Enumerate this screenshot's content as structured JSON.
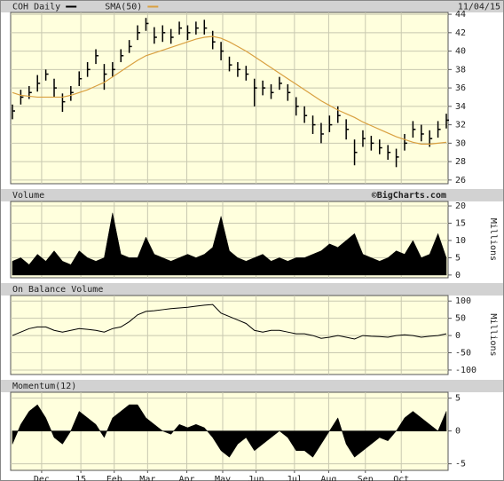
{
  "date": "11/04/15",
  "source": "©BigCharts.com",
  "x_axis": {
    "xlim": [
      0,
      52
    ],
    "xticks": [
      {
        "value": 3.5,
        "label": "Dec"
      },
      {
        "value": 8.2,
        "label": "15"
      },
      {
        "value": 12.2,
        "label": "Feb"
      },
      {
        "value": 16.2,
        "label": "Mar"
      },
      {
        "value": 20.9,
        "label": "Apr"
      },
      {
        "value": 25.2,
        "label": "May"
      },
      {
        "value": 29.2,
        "label": "Jun"
      },
      {
        "value": 33.8,
        "label": "Jul"
      },
      {
        "value": 37.9,
        "label": "Aug"
      },
      {
        "value": 42.3,
        "label": "Sep"
      },
      {
        "value": 46.6,
        "label": "Oct"
      }
    ]
  },
  "chart_data": [
    {
      "type": "ohlc",
      "ylim": [
        25.6,
        44.2
      ],
      "yticks": [
        26,
        28,
        30,
        32,
        34,
        36,
        38,
        40,
        42,
        44
      ],
      "grid": true,
      "series": [
        {
          "name": "COH Daily",
          "color": "#000000",
          "high": [
            34.2,
            35.8,
            36.2,
            37.4,
            38.0,
            37.0,
            35.4,
            36.2,
            37.8,
            38.8,
            40.2,
            38.6,
            38.8,
            40.2,
            41.2,
            42.8,
            43.6,
            42.6,
            42.8,
            42.4,
            43.2,
            42.8,
            43.2,
            43.4,
            42.2,
            41.0,
            39.4,
            38.8,
            38.4,
            37.0,
            36.8,
            36.4,
            37.2,
            36.4,
            35.0,
            34.0,
            33.0,
            32.2,
            33.0,
            34.0,
            32.6,
            30.4,
            31.4,
            30.8,
            30.4,
            29.8,
            29.4,
            31.0,
            32.4,
            32.0,
            31.4,
            32.4,
            33.2
          ],
          "low": [
            32.6,
            34.2,
            34.8,
            35.6,
            36.8,
            35.0,
            33.4,
            34.6,
            36.2,
            37.2,
            38.6,
            35.8,
            37.2,
            38.8,
            39.8,
            41.2,
            42.2,
            40.8,
            41.0,
            40.8,
            41.8,
            41.2,
            41.8,
            41.8,
            40.2,
            39.0,
            37.8,
            37.2,
            36.8,
            34.0,
            35.2,
            34.8,
            35.8,
            34.6,
            33.0,
            32.2,
            31.0,
            30.0,
            31.2,
            32.2,
            30.4,
            27.6,
            29.6,
            29.2,
            28.8,
            28.2,
            27.4,
            29.2,
            30.6,
            30.2,
            29.6,
            30.6,
            31.6
          ],
          "close": [
            33.5,
            35.0,
            35.5,
            36.5,
            37.5,
            36.0,
            34.5,
            35.5,
            37.0,
            38.0,
            39.5,
            37.5,
            38.0,
            39.5,
            40.5,
            42.0,
            43.0,
            41.5,
            42.0,
            41.5,
            42.5,
            42.0,
            42.5,
            42.5,
            41.0,
            40.0,
            38.5,
            38.0,
            37.5,
            36.0,
            36.0,
            35.5,
            36.5,
            35.5,
            34.0,
            33.0,
            32.0,
            31.0,
            32.0,
            33.0,
            31.5,
            29.0,
            30.5,
            30.0,
            29.5,
            29.0,
            28.5,
            30.0,
            31.5,
            31.0,
            30.5,
            31.5,
            32.5
          ]
        },
        {
          "name": "SMA(50)",
          "color": "#d9a040",
          "values": [
            35.5,
            35.2,
            35.1,
            35.0,
            35.0,
            35.0,
            35.0,
            35.2,
            35.5,
            35.8,
            36.2,
            36.6,
            37.2,
            37.8,
            38.4,
            39.0,
            39.5,
            39.8,
            40.1,
            40.4,
            40.7,
            41.0,
            41.3,
            41.5,
            41.6,
            41.4,
            41.0,
            40.5,
            40.0,
            39.4,
            38.8,
            38.2,
            37.6,
            37.0,
            36.4,
            35.8,
            35.2,
            34.6,
            34.1,
            33.6,
            33.2,
            32.8,
            32.3,
            31.9,
            31.5,
            31.1,
            30.7,
            30.4,
            30.1,
            29.9,
            29.9,
            30.0,
            30.1
          ]
        }
      ]
    },
    {
      "type": "area",
      "title": "Volume",
      "ylabel": "Millions",
      "ylim": [
        -0.8,
        21.3
      ],
      "yticks": [
        0,
        5,
        10,
        15,
        20
      ],
      "grid": true,
      "series": [
        {
          "color": "#000000",
          "values": [
            4,
            5,
            3,
            6,
            4,
            7,
            4,
            3,
            7,
            5,
            4,
            5,
            18,
            6,
            5,
            5,
            11,
            6,
            5,
            4,
            5,
            6,
            5,
            6,
            8,
            17,
            7,
            5,
            4,
            5,
            6,
            4,
            5,
            4,
            5,
            5,
            6,
            7,
            9,
            8,
            10,
            12,
            6,
            5,
            4,
            5,
            7,
            6,
            10,
            5,
            6,
            12,
            5
          ]
        }
      ]
    },
    {
      "type": "line",
      "title": "On Balance Volume",
      "ylabel": "Millions",
      "ylim": [
        -113,
        116
      ],
      "yticks": [
        100,
        50,
        0,
        -50,
        -100
      ],
      "grid": true,
      "series": [
        {
          "color": "#000000",
          "values": [
            0,
            10,
            20,
            25,
            25,
            15,
            10,
            15,
            20,
            18,
            15,
            10,
            20,
            25,
            40,
            60,
            70,
            72,
            75,
            78,
            80,
            82,
            85,
            88,
            90,
            65,
            55,
            45,
            35,
            15,
            10,
            15,
            15,
            10,
            5,
            5,
            0,
            -8,
            -5,
            0,
            -5,
            -10,
            0,
            -2,
            -3,
            -5,
            0,
            2,
            0,
            -5,
            -2,
            0,
            5
          ]
        }
      ]
    },
    {
      "type": "area",
      "title": "Momentum(12)",
      "ylim": [
        -6,
        5.9
      ],
      "yticks": [
        5,
        0,
        -5
      ],
      "grid": true,
      "series": [
        {
          "color": "#000000",
          "values": [
            -2,
            1,
            3,
            4,
            2,
            -1,
            -2,
            0,
            3,
            2,
            1,
            -1,
            2,
            3,
            4,
            4,
            2,
            1,
            0,
            -0.5,
            1,
            0.5,
            1,
            0.5,
            -1,
            -3,
            -4,
            -2,
            -1,
            -3,
            -2,
            -1,
            0,
            -1,
            -3,
            -3,
            -4,
            -2,
            0,
            2,
            -2,
            -4,
            -3,
            -2,
            -1,
            -1.5,
            0,
            2,
            3,
            2,
            1,
            0,
            3
          ]
        }
      ]
    }
  ]
}
